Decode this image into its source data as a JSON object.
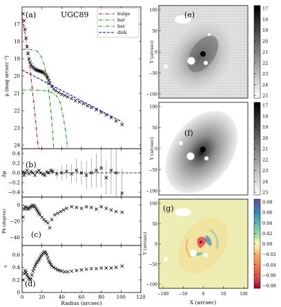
{
  "chart_data": [
    {
      "type": "scatter",
      "panel": "(a)",
      "annotation": "UGC89",
      "ylabel": "μ (mag arcsec⁻²)",
      "xlim": [
        0,
        120
      ],
      "ylim": [
        24.2,
        16
      ],
      "y_inverted": true,
      "yticks": [
        17,
        18,
        19,
        20,
        21,
        22,
        23,
        24
      ],
      "legend_position": "top-right",
      "points": {
        "x": [
          1,
          2,
          3,
          4,
          5,
          6,
          7,
          8,
          9,
          10,
          11,
          12,
          13,
          14,
          15,
          16,
          17,
          18,
          19,
          20,
          21,
          22,
          23,
          24,
          25,
          26,
          27,
          28,
          30,
          32,
          34,
          37,
          40,
          43,
          46,
          50,
          54,
          58,
          62,
          66,
          70,
          75,
          80,
          85,
          90,
          95,
          101
        ],
        "y": [
          16.4,
          16.8,
          17.3,
          17.8,
          18.3,
          18.7,
          19.0,
          19.2,
          19.35,
          19.45,
          19.5,
          19.55,
          19.6,
          19.63,
          19.66,
          19.68,
          19.7,
          19.72,
          19.74,
          19.76,
          19.78,
          19.82,
          19.87,
          19.93,
          20.0,
          20.1,
          20.25,
          20.4,
          20.6,
          20.75,
          20.85,
          20.95,
          21.05,
          21.12,
          21.2,
          21.3,
          21.42,
          21.5,
          21.6,
          21.72,
          21.82,
          21.95,
          22.1,
          22.25,
          22.4,
          22.6,
          22.8
        ]
      },
      "series": [
        {
          "name": "bulge",
          "color": "#e00000",
          "dash": "dashdot",
          "x": [
            0,
            2,
            4,
            6,
            8,
            10,
            12,
            14,
            16,
            17
          ],
          "y": [
            16.6,
            17.2,
            17.9,
            18.7,
            19.6,
            20.6,
            21.7,
            22.8,
            24.0,
            24.2
          ]
        },
        {
          "name": "bar",
          "color": "#00a000",
          "dash": "dashdot",
          "x": [
            0,
            5,
            10,
            15,
            18,
            20,
            22,
            24,
            26,
            28,
            30,
            32
          ],
          "y": [
            18.45,
            18.45,
            18.47,
            18.55,
            18.75,
            18.95,
            19.3,
            19.8,
            20.5,
            21.4,
            22.6,
            24.2
          ]
        },
        {
          "name": "bar",
          "color": "#00a000",
          "dash": "dashdot",
          "x": [
            0,
            10,
            20,
            25,
            30,
            35,
            38,
            40,
            42,
            44,
            46
          ],
          "y": [
            20.8,
            20.8,
            20.82,
            20.87,
            20.95,
            21.15,
            21.45,
            21.9,
            22.5,
            23.2,
            24.2
          ]
        },
        {
          "name": "disk",
          "color": "#0000dd",
          "dash": "dashed",
          "x": [
            0,
            101
          ],
          "y": [
            19.65,
            22.65
          ]
        }
      ]
    },
    {
      "type": "scatter",
      "panel": "(b)",
      "ylabel": "Δμ",
      "xlim": [
        0,
        120
      ],
      "ylim": [
        -0.5,
        0.5
      ],
      "yticks": [
        -0.4,
        -0.2,
        0.0,
        0.2,
        0.4
      ],
      "ytick_labels": [
        "−0.4",
        "−0.2",
        "0.0",
        "0.2",
        "0.4"
      ],
      "reference_line": 0,
      "x": [
        1,
        2,
        3,
        5,
        7,
        9,
        11,
        13,
        15,
        17,
        19,
        21,
        23,
        25,
        27,
        29,
        31,
        35,
        40,
        45,
        50,
        55,
        60,
        65,
        70,
        75,
        80,
        85,
        90,
        95,
        101
      ],
      "y": [
        0.02,
        -0.05,
        0.0,
        0.05,
        -0.02,
        0.03,
        0.0,
        -0.05,
        0.02,
        0.05,
        0.0,
        -0.03,
        -0.05,
        0.02,
        0.0,
        0.05,
        0.03,
        -0.02,
        0.0,
        0.03,
        -0.02,
        0.05,
        0.0,
        -0.05,
        0.0,
        0.05,
        0.1,
        -0.1,
        0.05,
        0.0,
        -0.42
      ],
      "yerr": [
        0.01,
        0.01,
        0.01,
        0.01,
        0.01,
        0.01,
        0.01,
        0.01,
        0.01,
        0.01,
        0.01,
        0.01,
        0.02,
        0.02,
        0.03,
        0.05,
        0.06,
        0.1,
        0.15,
        0.15,
        0.2,
        0.25,
        0.25,
        0.3,
        0.3,
        0.35,
        0.4,
        0.35,
        0.5,
        0.5,
        0.5
      ]
    },
    {
      "type": "scatter",
      "panel": "(c)",
      "ylabel": "PA (degree)",
      "xlim": [
        0,
        120
      ],
      "ylim": [
        -50,
        10
      ],
      "yticks": [
        -40,
        -20,
        0
      ],
      "ytick_labels": [
        "−40",
        "−20",
        "0"
      ],
      "x": [
        1,
        2,
        3,
        4,
        5,
        6,
        7,
        8,
        9,
        10,
        11,
        12,
        13,
        14,
        15,
        16,
        17,
        18,
        20,
        22,
        24,
        26,
        28,
        30,
        33,
        36,
        39,
        42,
        45,
        50,
        55,
        60,
        65,
        70,
        75,
        80,
        85,
        90,
        95,
        101
      ],
      "y": [
        -15,
        -5,
        -2,
        -3,
        -4,
        -5,
        -4,
        -3,
        -2,
        -1,
        0,
        -1,
        -2,
        -4,
        -6,
        -8,
        -10,
        -12,
        -15,
        -18,
        -20,
        -22,
        -28,
        -18,
        -12,
        -10,
        -8,
        -6,
        -4,
        -2,
        -3,
        -4,
        -2,
        -3,
        -5,
        -2,
        -4,
        -6,
        -8,
        -9
      ]
    },
    {
      "type": "scatter",
      "panel": "(d)",
      "ylabel": "ε",
      "xlabel": "Radius (arcsec)",
      "xlim": [
        0,
        120
      ],
      "ylim": [
        0,
        0.75
      ],
      "yticks": [
        0,
        0.2,
        0.4,
        0.6
      ],
      "ytick_labels": [
        "0",
        "0.2",
        "0.4",
        "0.6"
      ],
      "xticks": [
        0,
        20,
        40,
        60,
        80,
        100,
        120
      ],
      "x": [
        1,
        2,
        3,
        4,
        5,
        6,
        7,
        8,
        9,
        10,
        11,
        12,
        13,
        14,
        15,
        16,
        17,
        18,
        19,
        20,
        21,
        22,
        23,
        24,
        25,
        26,
        27,
        28,
        29,
        30,
        32,
        34,
        36,
        38,
        40,
        43,
        46,
        50,
        55,
        60,
        65,
        70,
        75,
        80,
        85,
        90,
        95,
        101
      ],
      "y": [
        0.2,
        0.3,
        0.35,
        0.32,
        0.28,
        0.25,
        0.22,
        0.2,
        0.22,
        0.28,
        0.34,
        0.38,
        0.42,
        0.45,
        0.48,
        0.5,
        0.52,
        0.55,
        0.58,
        0.6,
        0.62,
        0.64,
        0.65,
        0.63,
        0.6,
        0.55,
        0.5,
        0.48,
        0.45,
        0.42,
        0.4,
        0.38,
        0.36,
        0.35,
        0.34,
        0.33,
        0.33,
        0.34,
        0.35,
        0.36,
        0.37,
        0.38,
        0.38,
        0.39,
        0.39,
        0.39,
        0.4,
        0.42
      ]
    }
  ],
  "legend": [
    "bulge",
    "bar",
    "bar",
    "disk"
  ],
  "images": [
    {
      "label": "(e)",
      "ylabel": "Y (arcsec)",
      "colorbar": {
        "ticks": [
          "17",
          "18",
          "19",
          "20",
          "21",
          "22",
          "23",
          "24",
          "25"
        ],
        "colormap": "greys"
      }
    },
    {
      "label": "(f)",
      "ylabel": "Y (arcsec)",
      "colorbar": {
        "ticks": [
          "17",
          "18",
          "19",
          "20",
          "21",
          "22",
          "23",
          "24",
          "25"
        ],
        "colormap": "greys"
      }
    },
    {
      "label": "(g)",
      "ylabel": "Y (arcsec)",
      "xlabel": "X (arcsec)",
      "xticks": [
        "−100",
        "−50",
        "0",
        "50",
        "100"
      ],
      "yticks": [
        "−100",
        "−50",
        "0",
        "50",
        "100"
      ],
      "colorbar": {
        "ticks": [
          "0.08",
          "0.06",
          "0.04",
          "0.02",
          "0.00",
          "−0.02",
          "−0.04",
          "−0.06",
          "−0.08"
        ],
        "colormap": "spectral"
      }
    }
  ]
}
